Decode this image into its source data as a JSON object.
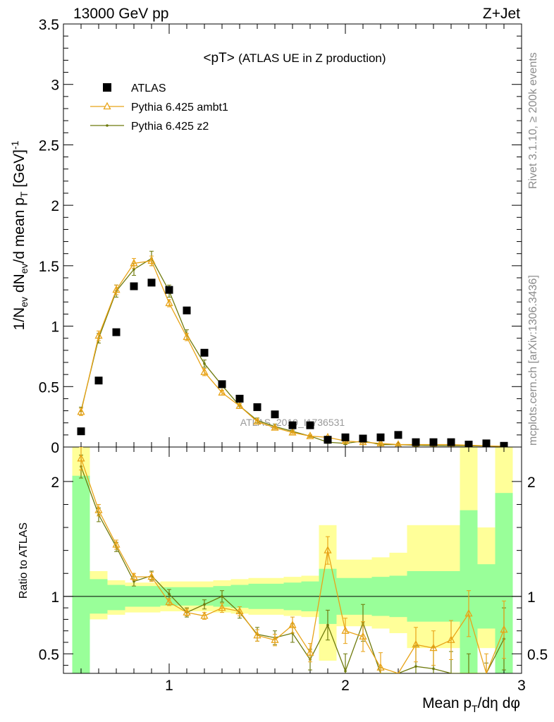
{
  "header": {
    "left": "13000 GeV pp",
    "right": "Z+Jet"
  },
  "side": {
    "events": "Rivet 3.1.10, ≥ 200k events",
    "source": "mcplots.cern.ch [arXiv:1306.3436]"
  },
  "watermark": "ATLAS_2019_I1736531",
  "colors": {
    "data": "#000000",
    "ambt1": "#e8a317",
    "z2": "#6e7a0c",
    "band_inner": "#99ff99",
    "band_outer": "#ffff99"
  },
  "chart_data": [
    {
      "type": "scatter",
      "panel": "main",
      "title": "<pT> (ATLAS UE in Z production)",
      "ylabel": "1/N_ev dN_ev/d mean p_T [GeV]^-1",
      "xlim": [
        0.4,
        3.0
      ],
      "ylim": [
        0,
        3.5
      ],
      "xticks": [
        "1",
        "2",
        "3"
      ],
      "yticks": [
        "0",
        "0.5",
        "1",
        "1.5",
        "2",
        "2.5",
        "3",
        "3.5"
      ],
      "legend_position": "top-left",
      "x": [
        0.5,
        0.6,
        0.7,
        0.8,
        0.9,
        1.0,
        1.1,
        1.2,
        1.3,
        1.4,
        1.5,
        1.6,
        1.7,
        1.8,
        1.9,
        2.0,
        2.1,
        2.2,
        2.3,
        2.4,
        2.5,
        2.6,
        2.7,
        2.8,
        2.9
      ],
      "series": [
        {
          "name": "ATLAS",
          "values": [
            0.13,
            0.55,
            0.95,
            1.33,
            1.36,
            1.3,
            1.13,
            0.78,
            0.52,
            0.4,
            0.33,
            0.27,
            0.18,
            0.18,
            0.06,
            0.08,
            0.07,
            0.08,
            0.1,
            0.04,
            0.04,
            0.04,
            0.02,
            0.03,
            0.01
          ]
        },
        {
          "name": "Pythia 6.425 ambt1",
          "values": [
            0.29,
            0.92,
            1.3,
            1.52,
            1.54,
            1.19,
            0.91,
            0.62,
            0.45,
            0.34,
            0.21,
            0.16,
            0.12,
            0.09,
            0.08,
            0.05,
            0.04,
            0.03,
            0.02,
            0.02,
            0.02,
            0.02,
            0.015,
            0.01,
            0.005
          ],
          "errors": [
            0.03,
            0.04,
            0.04,
            0.04,
            0.04,
            0.03,
            0.03,
            0.03,
            0.02,
            0.02,
            0.02,
            0.01,
            0.01,
            0.01,
            0.01,
            0.01,
            0.01,
            0.01,
            0.01,
            0.01,
            0.01,
            0.01,
            0.01,
            0.01,
            0.005
          ]
        },
        {
          "name": "Pythia 6.425 z2",
          "values": [
            0.3,
            0.9,
            1.29,
            1.47,
            1.56,
            1.29,
            0.93,
            0.69,
            0.51,
            0.34,
            0.22,
            0.17,
            0.13,
            0.09,
            0.04,
            0.03,
            0.05,
            0.02,
            0.02,
            0.015,
            0.012,
            0.01,
            0.01,
            0.008,
            0.006
          ],
          "errors": [
            0.03,
            0.04,
            0.05,
            0.05,
            0.06,
            0.05,
            0.04,
            0.03,
            0.02,
            0.02,
            0.02,
            0.02,
            0.01,
            0.01,
            0.01,
            0.01,
            0.01,
            0.01,
            0.01,
            0.01,
            0.01,
            0.01,
            0.01,
            0.01,
            0.005
          ]
        }
      ]
    },
    {
      "type": "line",
      "panel": "ratio",
      "xlabel": "Mean p_T/dη dφ",
      "ylabel": "Ratio to ATLAS",
      "xlim": [
        0.4,
        3.0
      ],
      "ylim": [
        0.33,
        2.3
      ],
      "yticks": [
        "0.5",
        "1",
        "2"
      ],
      "reference_line": 1,
      "x": [
        0.5,
        0.6,
        0.7,
        0.8,
        0.9,
        1.0,
        1.1,
        1.2,
        1.3,
        1.4,
        1.5,
        1.6,
        1.7,
        1.8,
        1.9,
        2.0,
        2.1,
        2.2,
        2.3,
        2.4,
        2.5,
        2.6,
        2.7,
        2.8,
        2.9
      ],
      "bins": [
        [
          0.45,
          0.55
        ],
        [
          0.55,
          0.65
        ],
        [
          0.65,
          0.75
        ],
        [
          0.75,
          0.85
        ],
        [
          0.85,
          0.95
        ],
        [
          0.95,
          1.05
        ],
        [
          1.05,
          1.15
        ],
        [
          1.15,
          1.25
        ],
        [
          1.25,
          1.35
        ],
        [
          1.35,
          1.45
        ],
        [
          1.45,
          1.55
        ],
        [
          1.55,
          1.65
        ],
        [
          1.65,
          1.75
        ],
        [
          1.75,
          1.85
        ],
        [
          1.85,
          1.95
        ],
        [
          1.95,
          2.05
        ],
        [
          2.05,
          2.15
        ],
        [
          2.15,
          2.25
        ],
        [
          2.25,
          2.35
        ],
        [
          2.35,
          2.45
        ],
        [
          2.45,
          2.55
        ],
        [
          2.55,
          2.65
        ],
        [
          2.65,
          2.75
        ],
        [
          2.75,
          2.85
        ],
        [
          2.85,
          2.95
        ]
      ],
      "band_inner": [
        [
          0.3,
          2.05
        ],
        [
          0.85,
          1.15
        ],
        [
          0.88,
          1.1
        ],
        [
          0.91,
          1.09
        ],
        [
          0.91,
          1.09
        ],
        [
          0.92,
          1.08
        ],
        [
          0.92,
          1.08
        ],
        [
          0.92,
          1.08
        ],
        [
          0.91,
          1.09
        ],
        [
          0.9,
          1.1
        ],
        [
          0.89,
          1.11
        ],
        [
          0.89,
          1.11
        ],
        [
          0.88,
          1.12
        ],
        [
          0.87,
          1.13
        ],
        [
          0.76,
          1.24
        ],
        [
          0.84,
          1.16
        ],
        [
          0.84,
          1.16
        ],
        [
          0.83,
          1.17
        ],
        [
          0.82,
          1.18
        ],
        [
          0.78,
          1.22
        ],
        [
          0.78,
          1.22
        ],
        [
          0.78,
          1.22
        ],
        [
          0.3,
          1.75
        ],
        [
          0.72,
          1.28
        ],
        [
          0.3,
          1.9
        ]
      ],
      "band_outer": [
        [
          0.3,
          2.3
        ],
        [
          0.8,
          1.22
        ],
        [
          0.84,
          1.14
        ],
        [
          0.86,
          1.12
        ],
        [
          0.86,
          1.12
        ],
        [
          0.87,
          1.13
        ],
        [
          0.87,
          1.13
        ],
        [
          0.87,
          1.13
        ],
        [
          0.86,
          1.14
        ],
        [
          0.85,
          1.15
        ],
        [
          0.84,
          1.16
        ],
        [
          0.84,
          1.16
        ],
        [
          0.83,
          1.17
        ],
        [
          0.82,
          1.18
        ],
        [
          0.44,
          1.62
        ],
        [
          0.74,
          1.32
        ],
        [
          0.74,
          1.32
        ],
        [
          0.72,
          1.34
        ],
        [
          0.68,
          1.38
        ],
        [
          0.55,
          1.62
        ],
        [
          0.55,
          1.62
        ],
        [
          0.55,
          1.62
        ],
        [
          0.3,
          2.3
        ],
        [
          0.55,
          1.6
        ],
        [
          0.3,
          2.3
        ]
      ],
      "series": [
        {
          "name": "Pythia 6.425 ambt1",
          "values": [
            2.2,
            1.75,
            1.45,
            1.17,
            1.17,
            0.95,
            0.86,
            0.83,
            0.9,
            0.87,
            0.66,
            0.62,
            0.75,
            0.51,
            1.4,
            0.7,
            0.65,
            0.38,
            0.2,
            0.58,
            0.55,
            0.62,
            0.85,
            0.3,
            0.71
          ],
          "errors": [
            0.1,
            0.05,
            0.04,
            0.03,
            0.04,
            0.03,
            0.03,
            0.03,
            0.04,
            0.04,
            0.05,
            0.05,
            0.07,
            0.08,
            0.12,
            0.11,
            0.13,
            0.13,
            0.13,
            0.15,
            0.15,
            0.17,
            0.2,
            0.2,
            0.25
          ]
        },
        {
          "name": "Pythia 6.425 z2",
          "values": [
            2.13,
            1.71,
            1.43,
            1.13,
            1.18,
            1.02,
            0.86,
            0.93,
            1.0,
            0.86,
            0.67,
            0.64,
            0.68,
            0.45,
            0.75,
            0.35,
            0.77,
            0.22,
            0.15,
            0.39,
            0.37,
            0.32,
            0.28,
            0.18,
            0.63
          ],
          "errors": [
            0.1,
            0.06,
            0.04,
            0.04,
            0.04,
            0.04,
            0.04,
            0.04,
            0.05,
            0.05,
            0.06,
            0.06,
            0.08,
            0.09,
            0.13,
            0.15,
            0.16,
            0.16,
            0.17,
            0.18,
            0.19,
            0.2,
            0.22,
            0.24,
            0.27
          ]
        }
      ]
    }
  ]
}
